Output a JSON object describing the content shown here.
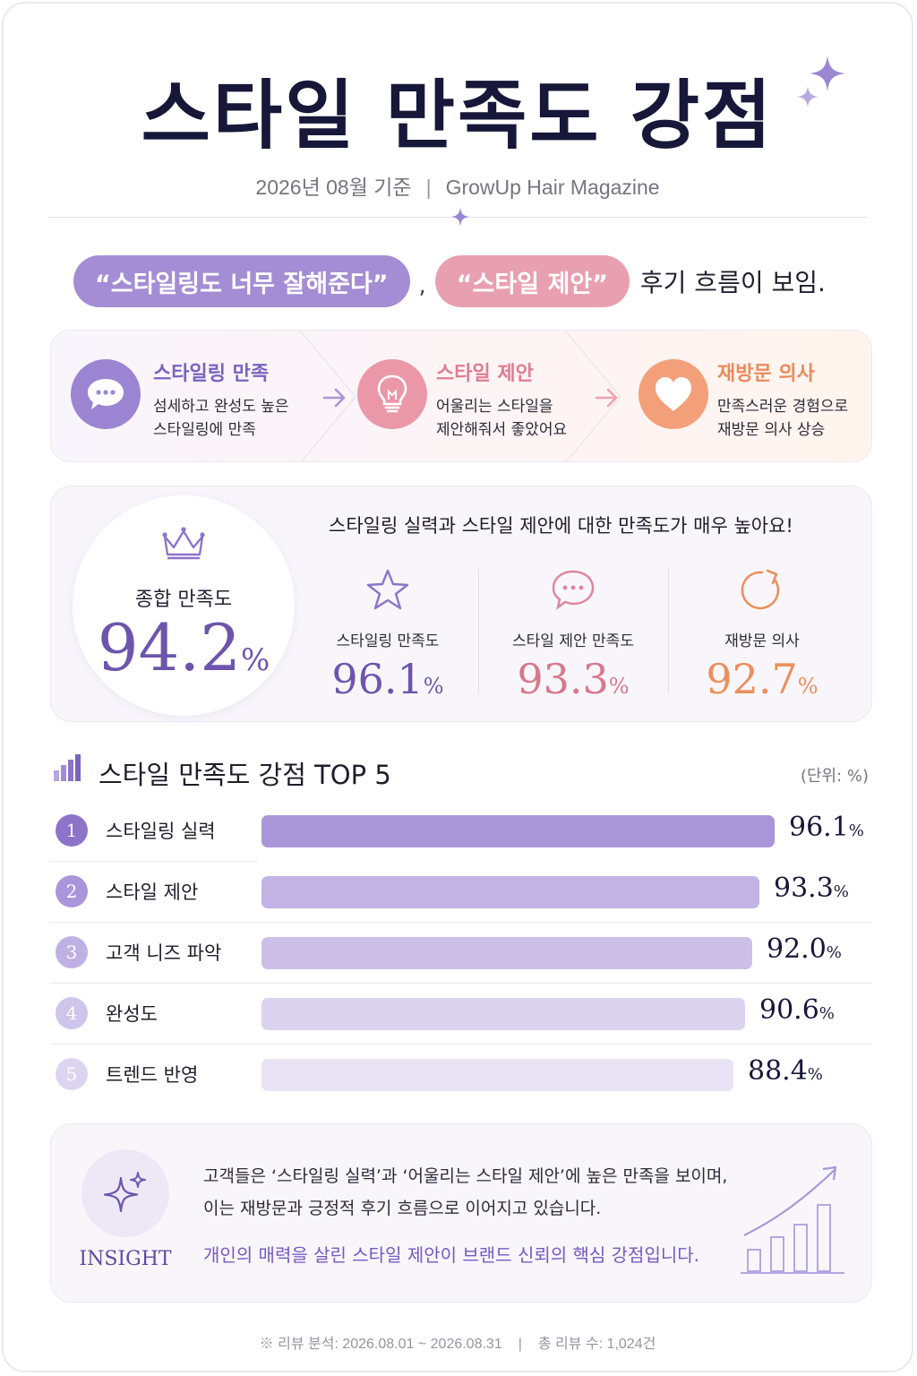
{
  "header": {
    "title": "스타일 만족도 강점",
    "date": "2026년 08월 기준",
    "divider": "|",
    "publisher": "GrowUp Hair Magazine"
  },
  "quotes": {
    "quote1": "“스타일링도 너무 잘해준다”",
    "comma": ",",
    "quote2": "“스타일 제안”",
    "tail": "후기 흐름이 보임."
  },
  "flow": [
    {
      "title": "스타일링 만족",
      "desc1": "섬세하고 완성도 높은",
      "desc2": "스타일링에 만족",
      "icon": "chat-bubble-icon",
      "color": "#8a70c6"
    },
    {
      "title": "스타일 제안",
      "desc1": "어울리는 스타일을",
      "desc2": "제안해줘서 좋았어요",
      "icon": "lightbulb-icon",
      "color": "#e58ea0"
    },
    {
      "title": "재방문 의사",
      "desc1": "만족스러운 경험으로",
      "desc2": "재방문 의사 상승",
      "icon": "heart-icon",
      "color": "#f0956a"
    }
  ],
  "stats": {
    "headline": "스타일링 실력과 스타일 제안에 대한 만족도가 매우 높아요!",
    "overall": {
      "label": "종합 만족도",
      "value": "94.2",
      "unit": "%",
      "icon": "crown-icon"
    },
    "metrics": [
      {
        "label": "스타일링 만족도",
        "value": "96.1",
        "unit": "%",
        "icon": "star-icon",
        "color": "#6d55ad"
      },
      {
        "label": "스타일 제안 만족도",
        "value": "93.3",
        "unit": "%",
        "icon": "speech-bubble-icon",
        "color": "#d9778b"
      },
      {
        "label": "재방문 의사",
        "value": "92.7",
        "unit": "%",
        "icon": "refresh-icon",
        "color": "#ec8f5c"
      }
    ]
  },
  "chart_data": {
    "type": "bar",
    "title": "스타일 만족도 강점 TOP 5",
    "unit_label": "(단위: %)",
    "categories": [
      "스타일링 실력",
      "스타일 제안",
      "고객 니즈 파악",
      "완성도",
      "트렌드 반영"
    ],
    "ranks": [
      "1",
      "2",
      "3",
      "4",
      "5"
    ],
    "values": [
      96.1,
      93.3,
      92.0,
      90.6,
      88.4
    ],
    "value_labels": [
      "96.1",
      "93.3",
      "92.0",
      "90.6",
      "88.4"
    ],
    "unit": "%",
    "bar_colors": [
      "#a996d8",
      "#c2b3e4",
      "#cdc0e8",
      "#dcd3ef",
      "#e9e3f5"
    ],
    "badge_colors": [
      "#8d74c9",
      "#a995d9",
      "#bfb0e3",
      "#cfc4ea",
      "#ddd5f0"
    ],
    "orientation": "horizontal"
  },
  "insight": {
    "label": "INSIGHT",
    "line1": "고객들은 ‘스타일링 실력’과 ‘어울리는 스타일 제안’에 높은 만족을 보이며,",
    "line2": "이는 재방문과 긍정적 후기 흐름으로 이어지고 있습니다.",
    "emphasis": "개인의 매력을 살린 스타일 제안이 브랜드 신뢰의 핵심 강점입니다."
  },
  "footer": {
    "period": "※ 리뷰 분석: 2026.08.01 ~ 2026.08.31",
    "divider": "|",
    "count": "총 리뷰 수: 1,024건"
  }
}
